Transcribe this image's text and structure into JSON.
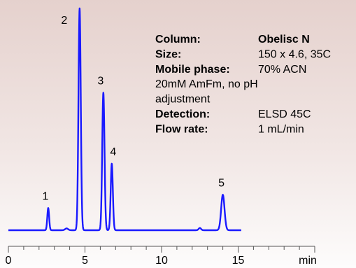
{
  "chart_data": {
    "type": "line",
    "x_unit_label": "min",
    "xlim": [
      0,
      20
    ],
    "x_ticks": [
      "0",
      "5",
      "10",
      "15"
    ],
    "y_visible": false,
    "grid": false,
    "series": [
      {
        "color": "#1a1aff",
        "baseline": 0,
        "peaks": [
          {
            "label": "1",
            "x": 2.6,
            "height": 0.1,
            "sigma": 0.06
          },
          {
            "label": "2",
            "x": 4.65,
            "height": 1.0,
            "sigma": 0.075
          },
          {
            "label": "3",
            "x": 6.2,
            "height": 0.62,
            "sigma": 0.075
          },
          {
            "label": "4",
            "x": 6.75,
            "height": 0.3,
            "sigma": 0.07
          },
          {
            "label": "5",
            "x": 14.0,
            "height": 0.16,
            "sigma": 0.11
          }
        ],
        "minor_bumps": [
          {
            "x": 3.8,
            "height": 0.008,
            "sigma": 0.1
          },
          {
            "x": 12.5,
            "height": 0.01,
            "sigma": 0.08
          }
        ]
      }
    ],
    "annotation": {
      "rows": [
        {
          "key": "Column:",
          "value": "Obelisc N",
          "value_bold": true
        },
        {
          "key": "Size:",
          "value": "150 x 4.6, 35C",
          "value_bold": false
        },
        {
          "key": "Mobile phase:",
          "value": "70% ACN",
          "value_bold": false
        },
        {
          "key": "",
          "value": "20mM AmFm,  no pH",
          "value_bold": false,
          "full_line": true
        },
        {
          "key": "",
          "value": "adjustment",
          "value_bold": false,
          "full_line": true
        },
        {
          "key": "Detection:",
          "value": "ELSD 45C",
          "value_bold": false
        },
        {
          "key": "Flow rate:",
          "value": "1 mL/min",
          "value_bold": false
        }
      ]
    }
  }
}
